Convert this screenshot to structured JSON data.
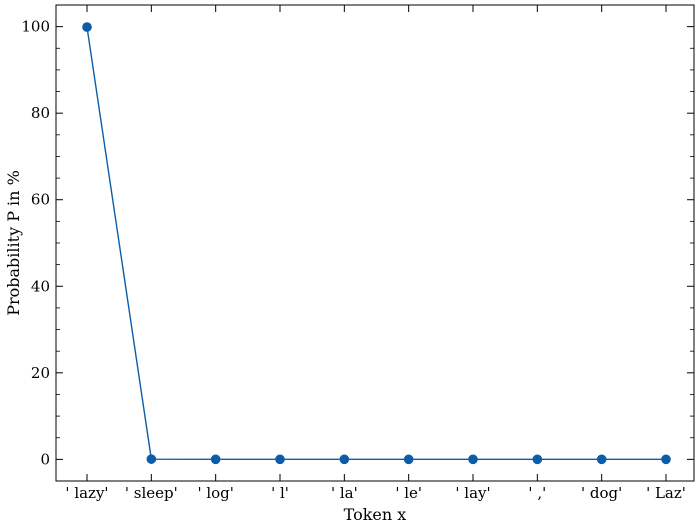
{
  "chart_data": {
    "type": "line",
    "title": "",
    "xlabel": "Token x",
    "ylabel": "Probability P in %",
    "categories": [
      "' lazy'",
      "' sleep'",
      "' log'",
      "' l'",
      "' la'",
      "' le'",
      "' lay'",
      "' ,'",
      "' dog'",
      "' Laz'"
    ],
    "series": [
      {
        "values": [
          99.9,
          0.05,
          0.01,
          0.01,
          0.01,
          0.01,
          0.01,
          0.01,
          0.01,
          0.01
        ],
        "color": "#0C5DA5"
      }
    ],
    "ylim": [
      -5,
      105
    ],
    "yticks": [
      0,
      20,
      40,
      60,
      80,
      100
    ],
    "grid": false,
    "legend": "none"
  }
}
